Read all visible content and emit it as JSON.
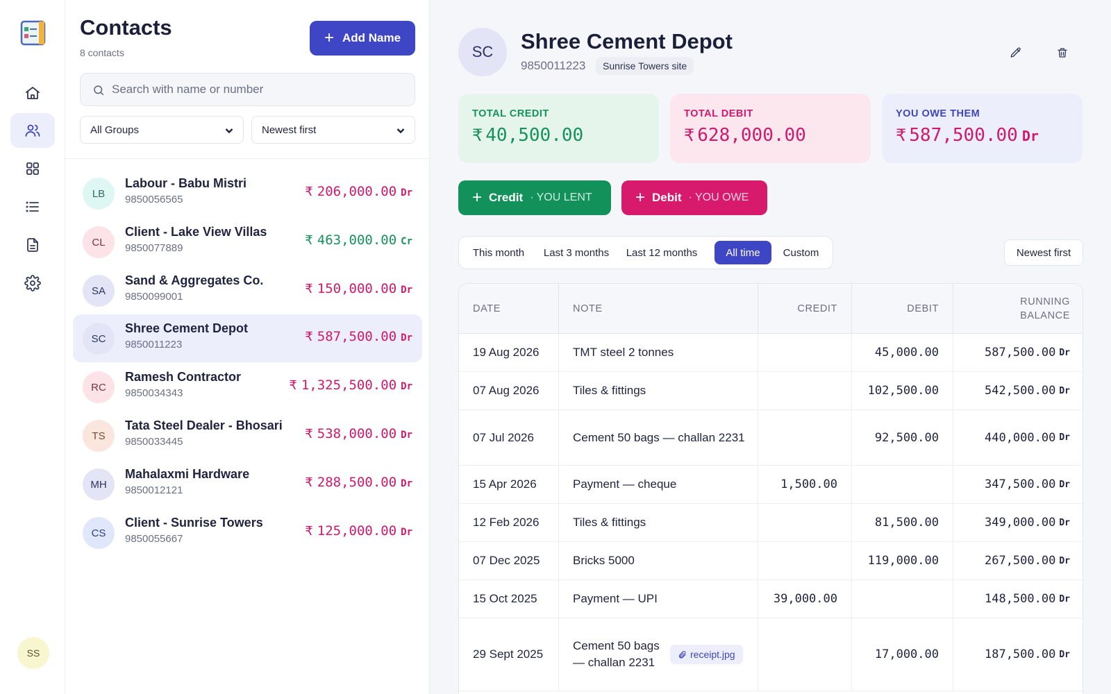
{
  "rail": {
    "user_initials": "SS",
    "items": [
      "home-icon",
      "users-icon",
      "grid-icon",
      "list-icon",
      "document-icon",
      "gear-icon"
    ]
  },
  "list": {
    "title": "Contacts",
    "count": "8 contacts",
    "add_label": "Add Name",
    "search_placeholder": "Search with name or number",
    "group_filter": "All Groups",
    "sort": "Newest first",
    "contacts": [
      {
        "initials": "LB",
        "name": "Labour - Babu Mistri",
        "phone": "9850056565",
        "amount": "206,000.00",
        "tag": "Dr",
        "kind": "debit",
        "avatar_bg": "#dff7f3",
        "avatar_fg": "#2b6b62"
      },
      {
        "initials": "CL",
        "name": "Client - Lake View Villas",
        "phone": "9850077889",
        "amount": "463,000.00",
        "tag": "Cr",
        "kind": "credit",
        "avatar_bg": "#fbe3e8",
        "avatar_fg": "#7a3346"
      },
      {
        "initials": "SA",
        "name": "Sand & Aggregates Co.",
        "phone": "9850099001",
        "amount": "150,000.00",
        "tag": "Dr",
        "kind": "debit",
        "avatar_bg": "#e3e5f7",
        "avatar_fg": "#2d3262"
      },
      {
        "initials": "SC",
        "name": "Shree Cement Depot",
        "phone": "9850011223",
        "amount": "587,500.00",
        "tag": "Dr",
        "kind": "debit",
        "avatar_bg": "#e3e5f7",
        "avatar_fg": "#2d3262",
        "selected": true
      },
      {
        "initials": "RC",
        "name": "Ramesh Contractor",
        "phone": "9850034343",
        "amount": "1,325,500.00",
        "tag": "Dr",
        "kind": "debit",
        "avatar_bg": "#fbe3e8",
        "avatar_fg": "#7a3346"
      },
      {
        "initials": "TS",
        "name": "Tata Steel Dealer - Bhosari",
        "phone": "9850033445",
        "amount": "538,000.00",
        "tag": "Dr",
        "kind": "debit",
        "avatar_bg": "#fbe6de",
        "avatar_fg": "#7a4a33"
      },
      {
        "initials": "MH",
        "name": "Mahalaxmi Hardware",
        "phone": "9850012121",
        "amount": "288,500.00",
        "tag": "Dr",
        "kind": "debit",
        "avatar_bg": "#e3e5f7",
        "avatar_fg": "#2d3262"
      },
      {
        "initials": "CS",
        "name": "Client - Sunrise Towers",
        "phone": "9850055667",
        "amount": "125,000.00",
        "tag": "Dr",
        "kind": "debit",
        "avatar_bg": "#e1e7fb",
        "avatar_fg": "#2d3e7a"
      }
    ]
  },
  "detail": {
    "initials": "SC",
    "name": "Shree Cement Depot",
    "phone": "9850011223",
    "site": "Sunrise Towers site",
    "currency": "₹",
    "cards": {
      "total_credit": {
        "label": "TOTAL CREDIT",
        "value": "40,500.00"
      },
      "total_debit": {
        "label": "TOTAL DEBIT",
        "value": "628,000.00"
      },
      "you_owe": {
        "label": "YOU OWE THEM",
        "value": "587,500.00",
        "tag": "Dr"
      }
    },
    "actions": {
      "credit": {
        "label": "Credit",
        "sub": "· YOU LENT"
      },
      "debit": {
        "label": "Debit",
        "sub": "· YOU OWE"
      }
    },
    "periods": [
      "This month",
      "Last 3 months",
      "Last 12 months",
      "All time",
      "Custom"
    ],
    "active_period": "All time",
    "sort": "Newest first",
    "table": {
      "headers": {
        "date": "DATE",
        "note": "NOTE",
        "credit": "CREDIT",
        "debit": "DEBIT",
        "balance_1": "RUNNING",
        "balance_2": "BALANCE"
      },
      "rows": [
        {
          "date": "19 Aug 2026",
          "note": "TMT steel 2 tonnes",
          "credit": "",
          "debit": "45,000.00",
          "balance": "587,500.00",
          "tag": "Dr"
        },
        {
          "date": "07 Aug 2026",
          "note": "Tiles & fittings",
          "credit": "",
          "debit": "102,500.00",
          "balance": "542,500.00",
          "tag": "Dr"
        },
        {
          "date": "07 Jul 2026",
          "note": "Cement 50 bags — challan 2231",
          "credit": "",
          "debit": "92,500.00",
          "balance": "440,000.00",
          "tag": "Dr"
        },
        {
          "date": "15 Apr 2026",
          "note": "Payment — cheque",
          "credit": "1,500.00",
          "debit": "",
          "balance": "347,500.00",
          "tag": "Dr"
        },
        {
          "date": "12 Feb 2026",
          "note": "Tiles & fittings",
          "credit": "",
          "debit": "81,500.00",
          "balance": "349,000.00",
          "tag": "Dr"
        },
        {
          "date": "07 Dec 2025",
          "note": "Bricks 5000",
          "credit": "",
          "debit": "119,000.00",
          "balance": "267,500.00",
          "tag": "Dr"
        },
        {
          "date": "15 Oct 2025",
          "note": "Payment — UPI",
          "credit": "39,000.00",
          "debit": "",
          "balance": "148,500.00",
          "tag": "Dr"
        },
        {
          "date": "29 Sept 2025",
          "note": "Cement 50 bags — challan 2231",
          "attachment": "receipt.jpg",
          "credit": "",
          "debit": "17,000.00",
          "balance": "187,500.00",
          "tag": "Dr"
        }
      ]
    }
  },
  "colors": {
    "accent": "#3f46c6",
    "credit": "#15915a",
    "debit": "#d0196c"
  }
}
